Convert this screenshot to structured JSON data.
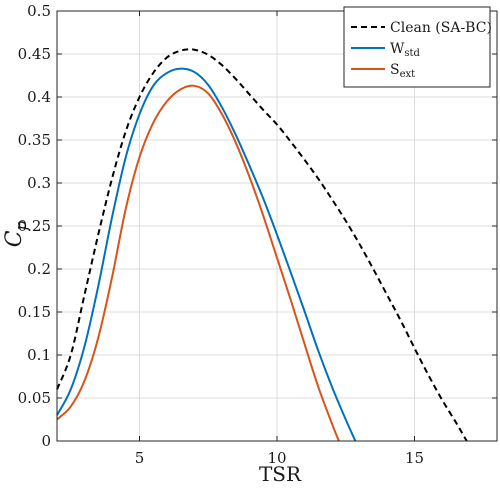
{
  "chart_data": {
    "type": "line",
    "xlabel": "TSR",
    "ylabel": {
      "main": "C",
      "sub": "p"
    },
    "xlim": [
      2,
      18
    ],
    "ylim": [
      0,
      0.5
    ],
    "xticks": [
      5,
      10,
      15
    ],
    "yticks": [
      0,
      0.05,
      0.1,
      0.15,
      0.2,
      0.25,
      0.3,
      0.35,
      0.4,
      0.45,
      0.5
    ],
    "ytick_labels": [
      "0",
      "0.05",
      "0.1",
      "0.15",
      "0.2",
      "0.25",
      "0.3",
      "0.35",
      "0.4",
      "0.45",
      "0.5"
    ],
    "grid": true,
    "legend_position": "top-right",
    "series": [
      {
        "name": "Clean (SA-BC)",
        "color": "#000000",
        "style": "dashed",
        "x": [
          2,
          2.5,
          3,
          3.5,
          4,
          4.5,
          5,
          5.5,
          6,
          6.5,
          7,
          7.5,
          8,
          8.5,
          9,
          9.5,
          10,
          10.5,
          11,
          11.5,
          12,
          12.5,
          13,
          13.5,
          14,
          14.5,
          15,
          15.5,
          16,
          16.5,
          16.9
        ],
        "values": [
          0.06,
          0.1,
          0.17,
          0.24,
          0.305,
          0.36,
          0.4,
          0.428,
          0.446,
          0.454,
          0.455,
          0.449,
          0.437,
          0.421,
          0.403,
          0.385,
          0.368,
          0.348,
          0.327,
          0.305,
          0.281,
          0.256,
          0.229,
          0.2,
          0.17,
          0.14,
          0.108,
          0.077,
          0.048,
          0.022,
          0.0
        ]
      },
      {
        "name": "W",
        "name_sub": "std",
        "color": "#0072BD",
        "style": "solid",
        "x": [
          2,
          2.5,
          3,
          3.5,
          4,
          4.5,
          5,
          5.5,
          6,
          6.5,
          7,
          7.5,
          8,
          8.5,
          9,
          9.5,
          10,
          10.5,
          11,
          11.5,
          12,
          12.5,
          12.85
        ],
        "values": [
          0.03,
          0.06,
          0.11,
          0.18,
          0.26,
          0.33,
          0.38,
          0.413,
          0.428,
          0.433,
          0.429,
          0.414,
          0.388,
          0.356,
          0.32,
          0.282,
          0.24,
          0.196,
          0.151,
          0.105,
          0.063,
          0.025,
          0.0
        ]
      },
      {
        "name": "S",
        "name_sub": "ext",
        "color": "#D95319",
        "style": "solid",
        "x": [
          2,
          2.5,
          3,
          3.5,
          4,
          4.5,
          5,
          5.5,
          6,
          6.5,
          7,
          7.5,
          8,
          8.5,
          9,
          9.5,
          10,
          10.5,
          11,
          11.5,
          12,
          12.25
        ],
        "values": [
          0.025,
          0.04,
          0.07,
          0.12,
          0.19,
          0.27,
          0.33,
          0.37,
          0.395,
          0.409,
          0.413,
          0.404,
          0.38,
          0.347,
          0.307,
          0.262,
          0.213,
          0.164,
          0.113,
          0.063,
          0.02,
          0.0
        ]
      }
    ]
  }
}
